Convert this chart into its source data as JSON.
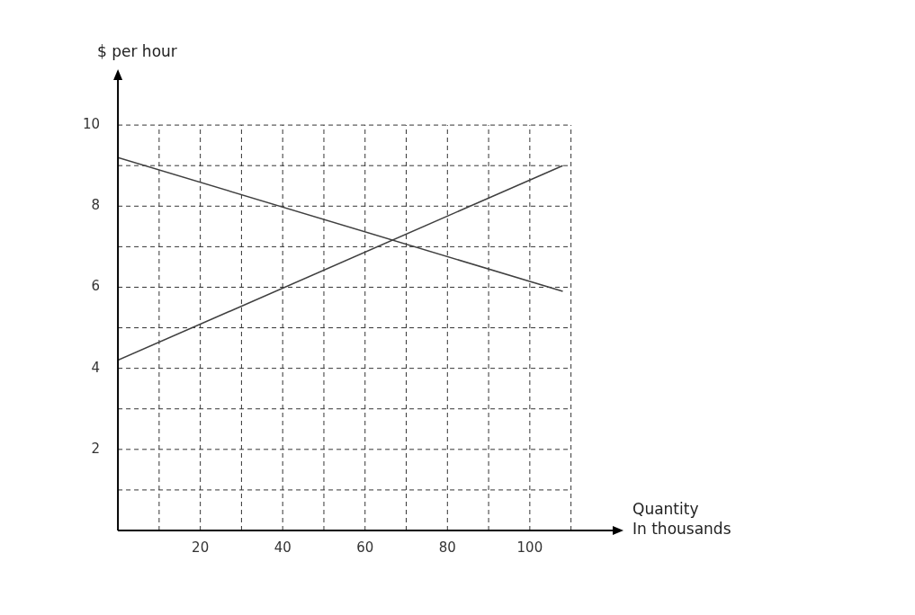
{
  "chart_data": {
    "type": "line",
    "xlabel": "Quantity\nIn thousands",
    "ylabel": "$ per hour",
    "xlim": [
      0,
      121
    ],
    "ylim": [
      0,
      11.2
    ],
    "xticks": [
      {
        "value": 10,
        "label": null
      },
      20,
      {
        "value": 30,
        "label": null
      },
      40,
      {
        "value": 50,
        "label": null
      },
      60,
      {
        "value": 70,
        "label": null
      },
      80,
      {
        "value": 90,
        "label": null
      },
      100,
      {
        "value": 110,
        "label": null
      }
    ],
    "yticks": [
      {
        "value": 1,
        "label": null
      },
      2,
      {
        "value": 3,
        "label": null
      },
      4,
      {
        "value": 5,
        "label": null
      },
      6,
      {
        "value": 7,
        "label": null
      },
      8,
      {
        "value": 9,
        "label": null
      },
      10
    ],
    "x": [
      0,
      108
    ],
    "series": [
      {
        "color": "#404040",
        "values": [
          9.2,
          5.9
        ]
      },
      {
        "color": "#404040",
        "values": [
          4.2,
          9.0
        ]
      }
    ],
    "grid": true,
    "line_style": "solid",
    "marker": "none",
    "legend": false
  }
}
